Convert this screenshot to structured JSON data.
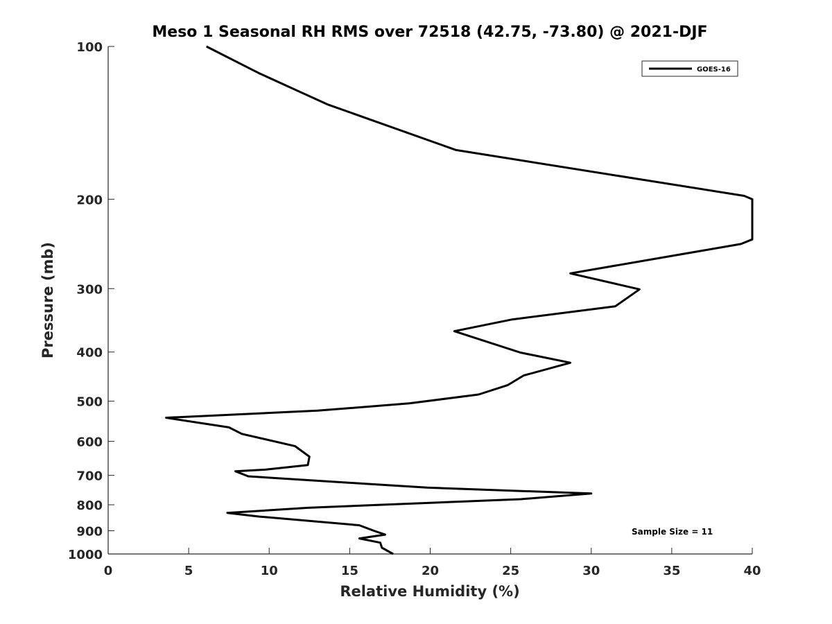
{
  "chart_data": {
    "type": "line",
    "title": "Meso 1 Seasonal RH RMS over 72518 (42.75, -73.80) @ 2021-DJF",
    "xlabel": "Relative Humidity (%)",
    "ylabel": "Pressure (mb)",
    "xlim": [
      0,
      40
    ],
    "ylim": [
      100,
      1000
    ],
    "y_scale": "log",
    "y_reversed": true,
    "xticks": [
      "0",
      "5",
      "10",
      "15",
      "20",
      "25",
      "30",
      "35",
      "40"
    ],
    "yticks": [
      "100",
      "200",
      "300",
      "400",
      "500",
      "600",
      "700",
      "800",
      "900",
      "1000"
    ],
    "grid": false,
    "legend_position": "top-right",
    "annotation": "Sample Size = 11",
    "series": [
      {
        "name": "GOES-16",
        "color": "#000000",
        "x": [
          6.1,
          9.4,
          13.6,
          21.6,
          39.5,
          40.0,
          40.0,
          39.3,
          28.7,
          33.0,
          31.5,
          25.1,
          21.5,
          25.6,
          28.7,
          25.8,
          24.8,
          23.0,
          18.7,
          13.0,
          3.6,
          7.5,
          8.3,
          11.6,
          12.5,
          12.4,
          9.8,
          7.9,
          8.7,
          15.9,
          19.8,
          30.0,
          25.6,
          16.9,
          12.4,
          7.4,
          9.4,
          15.6,
          16.5,
          17.2,
          15.6,
          16.9,
          17.0,
          17.7
        ],
        "y": [
          100,
          113,
          130,
          160,
          197,
          200,
          240,
          245,
          280,
          301,
          325,
          345,
          364,
          401,
          420,
          445,
          465,
          485,
          505,
          522,
          539,
          563,
          580,
          613,
          643,
          668,
          682,
          687,
          703,
          727,
          740,
          760,
          780,
          800,
          811,
          830,
          844,
          878,
          900,
          916,
          932,
          950,
          972,
          1000
        ]
      }
    ]
  }
}
